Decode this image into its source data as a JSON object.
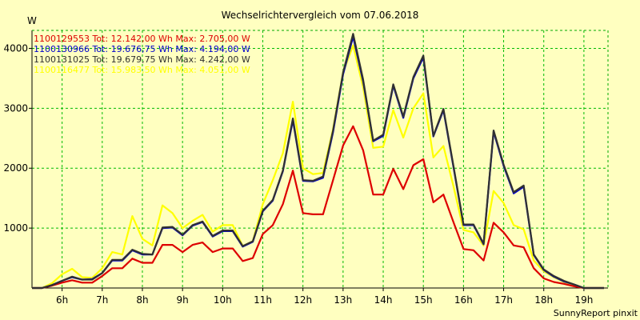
{
  "chart_data": {
    "type": "line",
    "title": "Wechselrichtervergleich vom 07.06.2018",
    "ylabel": "W",
    "footer": "SunnyReport pinxit",
    "ylim": [
      0,
      4300
    ],
    "xlim": [
      5.25,
      19.6
    ],
    "grid": true,
    "legend_position": "top-left",
    "y_ticks": [
      1000,
      2000,
      3000,
      4000
    ],
    "x_ticks": [
      {
        "label": "6h",
        "value": 6
      },
      {
        "label": "7h",
        "value": 7
      },
      {
        "label": "8h",
        "value": 8
      },
      {
        "label": "9h",
        "value": 9
      },
      {
        "label": "10h",
        "value": 10
      },
      {
        "label": "11h",
        "value": 11
      },
      {
        "label": "12h",
        "value": 12
      },
      {
        "label": "13h",
        "value": 13
      },
      {
        "label": "14h",
        "value": 14
      },
      {
        "label": "15h",
        "value": 15
      },
      {
        "label": "16h",
        "value": 16
      },
      {
        "label": "17h",
        "value": 17
      },
      {
        "label": "18h",
        "value": 18
      },
      {
        "label": "19h",
        "value": 19
      }
    ],
    "x": [
      5.25,
      5.5,
      5.75,
      6.0,
      6.25,
      6.5,
      6.75,
      7.0,
      7.25,
      7.5,
      7.75,
      8.0,
      8.25,
      8.5,
      8.75,
      9.0,
      9.25,
      9.5,
      9.75,
      10.0,
      10.25,
      10.5,
      10.75,
      11.0,
      11.25,
      11.5,
      11.75,
      12.0,
      12.25,
      12.5,
      12.75,
      13.0,
      13.25,
      13.5,
      13.75,
      14.0,
      14.25,
      14.5,
      14.75,
      15.0,
      15.25,
      15.5,
      15.75,
      16.0,
      16.25,
      16.5,
      16.75,
      17.0,
      17.25,
      17.5,
      17.75,
      18.0,
      18.25,
      18.5,
      18.75,
      19.0,
      19.25,
      19.5
    ],
    "series": [
      {
        "name": "1100129553 Tot: 12.142,00 Wh Max: 2.705,00 W",
        "color": "#DD0000",
        "values": [
          0,
          0,
          40,
          90,
          130,
          90,
          90,
          200,
          330,
          330,
          490,
          420,
          420,
          720,
          720,
          600,
          720,
          760,
          600,
          660,
          660,
          450,
          500,
          900,
          1050,
          1400,
          1960,
          1250,
          1230,
          1230,
          1800,
          2380,
          2700,
          2300,
          1560,
          1560,
          1990,
          1650,
          2050,
          2150,
          1430,
          1560,
          1100,
          650,
          630,
          460,
          1090,
          930,
          710,
          680,
          330,
          160,
          100,
          70,
          30,
          0,
          0,
          0
        ]
      },
      {
        "name": "1100130966 Tot: 19.676,75 Wh Max: 4.194,00 W",
        "color": "#0000CC",
        "values": [
          0,
          0,
          50,
          120,
          180,
          140,
          150,
          250,
          460,
          460,
          630,
          560,
          560,
          1000,
          1010,
          880,
          1040,
          1100,
          860,
          950,
          950,
          690,
          770,
          1280,
          1460,
          1950,
          2800,
          1790,
          1780,
          1840,
          2600,
          3570,
          4194,
          3450,
          2450,
          2540,
          3380,
          2840,
          3500,
          3850,
          2530,
          2970,
          2020,
          1050,
          1050,
          730,
          2610,
          2040,
          1580,
          1690,
          550,
          300,
          190,
          110,
          60,
          0,
          0,
          0
        ]
      },
      {
        "name": "1100131025 Tot: 19.679,75 Wh Max: 4.242,00 W",
        "color": "#303030",
        "values": [
          0,
          0,
          50,
          120,
          190,
          140,
          140,
          250,
          470,
          470,
          640,
          570,
          560,
          1010,
          1020,
          890,
          1050,
          1110,
          870,
          960,
          960,
          700,
          780,
          1290,
          1470,
          1960,
          2830,
          1800,
          1790,
          1860,
          2630,
          3600,
          4242,
          3480,
          2460,
          2560,
          3400,
          2860,
          3520,
          3880,
          2540,
          2990,
          2040,
          1060,
          1060,
          740,
          2630,
          2060,
          1600,
          1710,
          560,
          310,
          200,
          120,
          60,
          0,
          0,
          0
        ]
      },
      {
        "name": "1100116477 Tot: 15.983,50 Wh Max: 4.051,00 W",
        "color": "#FFFF00",
        "values": [
          0,
          0,
          80,
          230,
          320,
          180,
          170,
          330,
          600,
          560,
          1200,
          820,
          710,
          1380,
          1250,
          1000,
          1120,
          1220,
          940,
          1050,
          1050,
          700,
          780,
          1400,
          1800,
          2250,
          3110,
          2000,
          1900,
          1920,
          2650,
          3600,
          4051,
          3350,
          2340,
          2360,
          2970,
          2510,
          3000,
          3250,
          2180,
          2370,
          1700,
          970,
          930,
          710,
          1620,
          1420,
          1050,
          980,
          460,
          280,
          180,
          100,
          50,
          0,
          0,
          0
        ]
      }
    ]
  }
}
